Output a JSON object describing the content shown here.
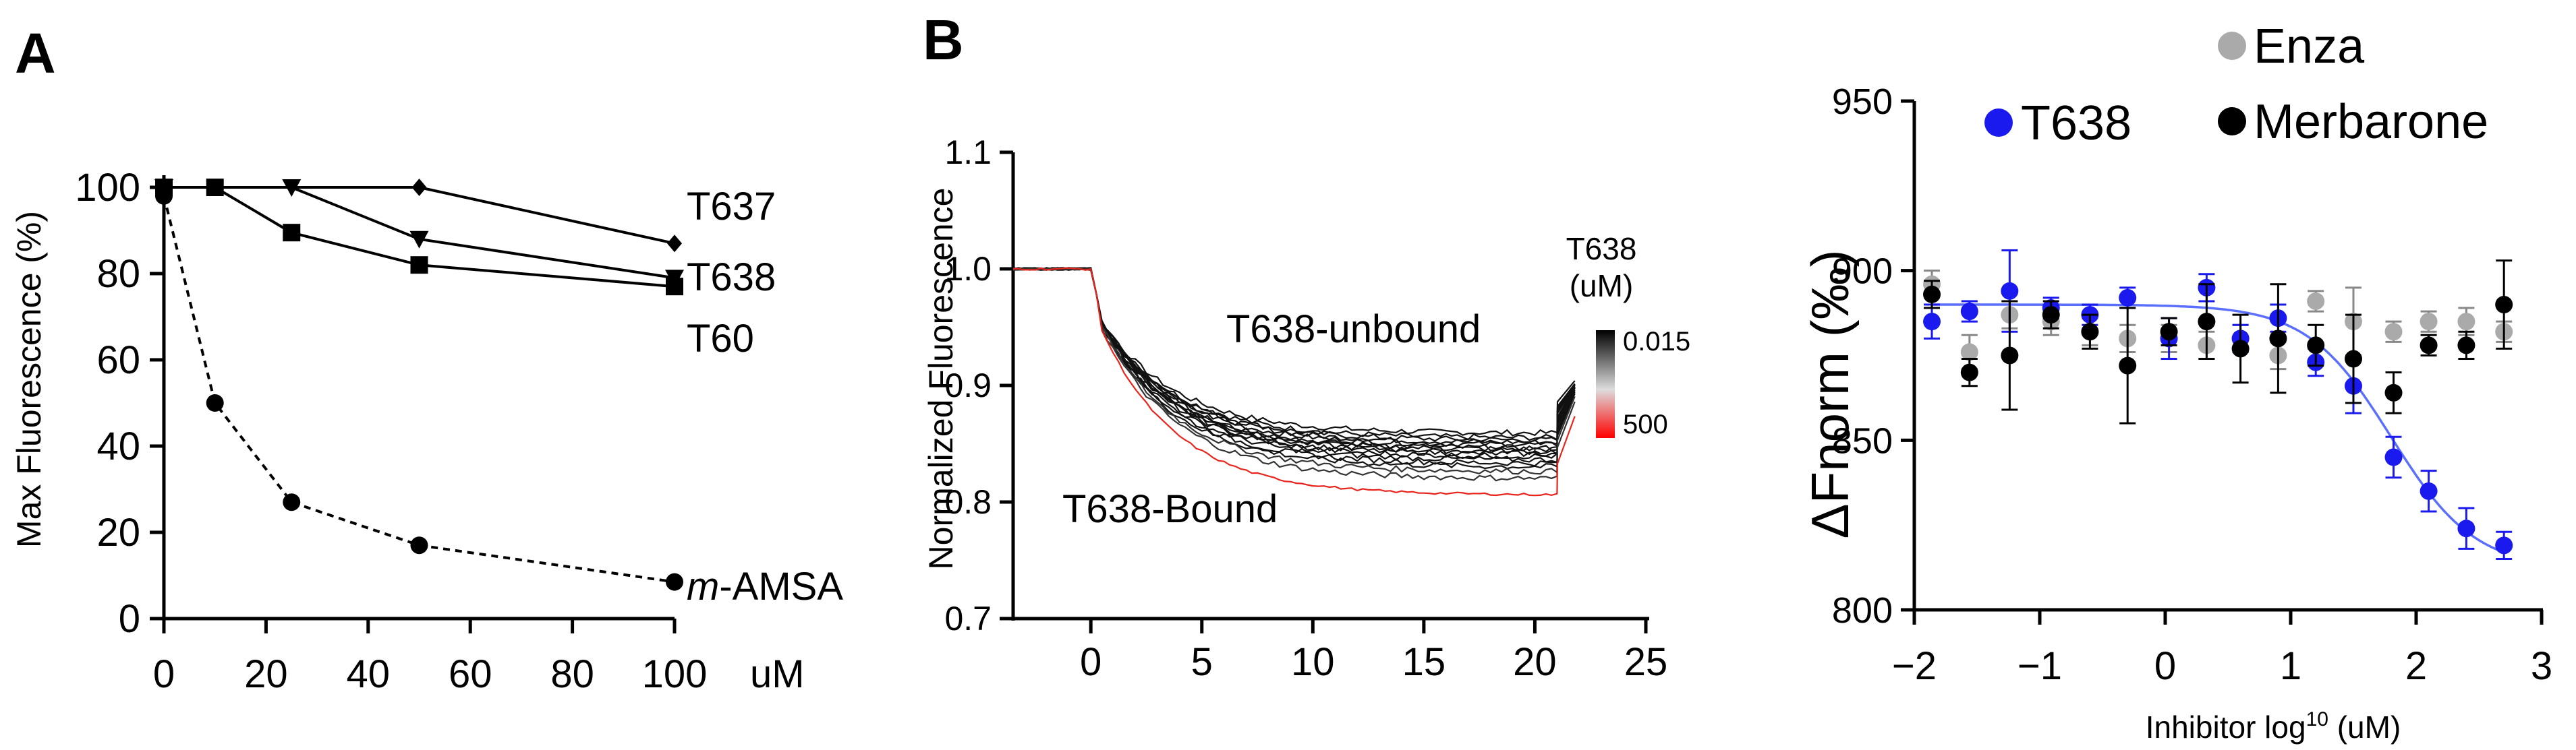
{
  "figure": {
    "panel_a_label": "A",
    "panel_b_label": "B"
  },
  "chart_data": [
    {
      "id": "A",
      "type": "line",
      "xlabel": "uM",
      "ylabel": "Max Fluorescence (%)",
      "xlim": [
        0,
        100
      ],
      "ylim": [
        0,
        100
      ],
      "xticks": [
        0,
        20,
        40,
        60,
        80,
        100
      ],
      "yticks": [
        0,
        20,
        40,
        60,
        80,
        100
      ],
      "series": [
        {
          "name": "T637",
          "marker": "diamond",
          "dashed": false,
          "x": [
            0,
            50,
            100
          ],
          "values": [
            100,
            100,
            87
          ]
        },
        {
          "name": "T638",
          "marker": "triangle-down",
          "dashed": false,
          "x": [
            0,
            25,
            50,
            100
          ],
          "values": [
            100,
            100,
            88,
            79
          ]
        },
        {
          "name": "T60",
          "marker": "square",
          "dashed": false,
          "x": [
            0,
            10,
            25,
            50,
            100
          ],
          "values": [
            100,
            100,
            89.5,
            82,
            77
          ]
        },
        {
          "name": "m-AMSA",
          "name_prefix": "m",
          "name_suffix": "-AMSA",
          "marker": "circle",
          "dashed": true,
          "x": [
            0,
            10,
            25,
            50,
            100
          ],
          "values": [
            98,
            50,
            27,
            17,
            8.5
          ]
        }
      ]
    },
    {
      "id": "B-left",
      "type": "line",
      "xlabel": "",
      "ylabel": "Normalized Fluorescence",
      "xlim": [
        -3.5,
        25
      ],
      "ylim": [
        0.7,
        1.1
      ],
      "xticks": [
        0,
        5,
        10,
        15,
        20,
        25
      ],
      "yticks": [
        0.7,
        0.8,
        0.9,
        1.0,
        1.1
      ],
      "ytick_labels": [
        "0.7",
        "0.8",
        "0.9",
        "1.0",
        "1.1"
      ],
      "trace_model": {
        "baseline": 1.0,
        "drop_time": 0,
        "end_time": 21,
        "jump": 0.045
      },
      "traces_final": [
        0.859,
        0.855,
        0.853,
        0.851,
        0.849,
        0.846,
        0.845,
        0.843,
        0.841,
        0.839,
        0.836,
        0.833,
        0.83,
        0.826,
        0.82,
        0.806
      ],
      "annotations": {
        "unbound": "T638-unbound",
        "bound": "T638-Bound"
      },
      "colorbar": {
        "title_line1": "T638",
        "title_line2": "(uM)",
        "max_label": "0.015",
        "min_label": "500",
        "top_color": "#000000",
        "bottom_color": "#ff0000"
      }
    },
    {
      "id": "B-right",
      "type": "scatter",
      "xlabel": "Inhibitor log",
      "xlabel_sup": "10",
      "xlabel_unit": " (uM)",
      "ylabel": "ΔFnorm (‰)",
      "xlim": [
        -2,
        3
      ],
      "ylim": [
        800,
        950
      ],
      "xticks": [
        -2,
        -1,
        0,
        1,
        2,
        3
      ],
      "yticks": [
        800,
        850,
        900,
        950
      ],
      "fit": {
        "series": "T638",
        "top": 890,
        "bottom": 812,
        "ec50_log": 1.8,
        "hill": 1.3,
        "color": "#5b6fff"
      },
      "series": [
        {
          "name": "Enza",
          "color": "#aaaaaa",
          "x": [
            -1.86,
            -1.56,
            -1.24,
            -0.91,
            -0.6,
            -0.3,
            0.03,
            0.33,
            0.6,
            0.9,
            1.2,
            1.5,
            1.82,
            2.1,
            2.4,
            2.7
          ],
          "values": [
            896,
            876,
            887,
            885,
            882,
            880,
            880,
            878,
            880,
            875,
            891,
            885,
            882,
            885,
            885,
            882
          ],
          "err": [
            4,
            5,
            4,
            4,
            4,
            4,
            4,
            4,
            4,
            4,
            3,
            10,
            3,
            3,
            4,
            3
          ]
        },
        {
          "name": "T638",
          "color": "#1a1aee",
          "x": [
            -1.86,
            -1.56,
            -1.24,
            -0.91,
            -0.6,
            -0.3,
            0.03,
            0.33,
            0.6,
            0.9,
            1.2,
            1.5,
            1.82,
            2.1,
            2.4,
            2.7
          ],
          "values": [
            885,
            888,
            894,
            889,
            887,
            892,
            880,
            895,
            880,
            886,
            873,
            866,
            845,
            835,
            824,
            819
          ],
          "err": [
            5,
            3,
            12,
            3,
            3,
            3,
            6,
            4,
            4,
            4,
            4,
            8,
            6,
            6,
            6,
            4
          ]
        },
        {
          "name": "Merbarone",
          "color": "#000000",
          "x": [
            -1.86,
            -1.56,
            -1.24,
            -0.91,
            -0.6,
            -0.3,
            0.03,
            0.33,
            0.6,
            0.9,
            1.2,
            1.5,
            1.82,
            2.1,
            2.4,
            2.7
          ],
          "values": [
            893,
            870,
            875,
            887,
            882,
            872,
            882,
            885,
            877,
            880,
            878,
            874,
            864,
            878,
            878,
            890
          ],
          "err": [
            4,
            4,
            16,
            4,
            5,
            17,
            4,
            11,
            10,
            16,
            6,
            13,
            6,
            3,
            4,
            13
          ]
        }
      ]
    }
  ]
}
